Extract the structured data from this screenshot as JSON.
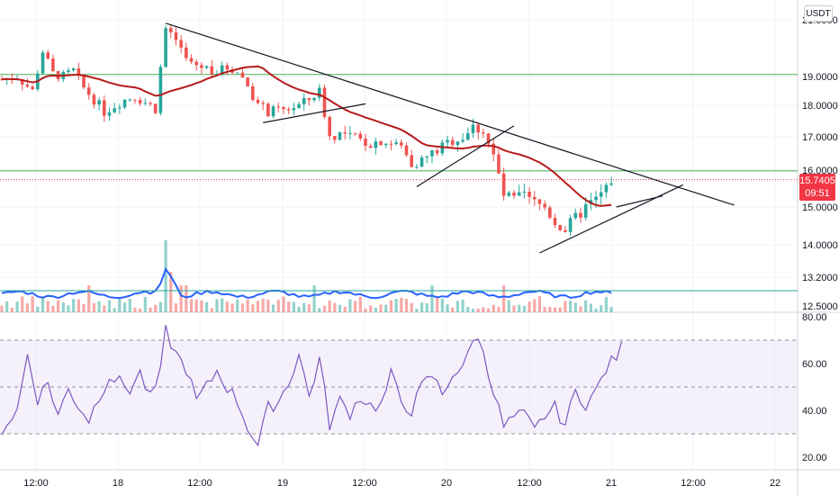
{
  "currency": "USDT",
  "last_price": "15.7405",
  "countdown": "09:51",
  "colors": {
    "up": "#26a69a",
    "down": "#ef5350",
    "ma": "#b71c1c",
    "volume_ma": "#2962ff",
    "rsi": "#7e57c2",
    "rsi_band": "#ede7f6",
    "hline": "#4caf50",
    "trend": "#131722",
    "last_price": "#f23645"
  },
  "chart_data": [
    {
      "type": "candlestick",
      "price_axis_ticks": [
        "21.0000",
        "19.0000",
        "18.0000",
        "17.0000",
        "16.0000",
        "15.0000",
        "14.0000",
        "13.2000",
        "12.5000"
      ],
      "time_axis_ticks": [
        "12:00",
        "18",
        "12:00",
        "19",
        "12:00",
        "20",
        "12:00",
        "21",
        "12:00",
        "22"
      ],
      "ylim": [
        12.5,
        21.2
      ],
      "bars": 120,
      "close_path": [
        [
          0,
          18.9
        ],
        [
          3,
          19.0
        ],
        [
          6,
          18.5
        ],
        [
          8,
          19.9
        ],
        [
          10,
          19.1
        ],
        [
          12,
          19.0
        ],
        [
          14,
          19.2
        ],
        [
          16,
          18.6
        ],
        [
          18,
          18.2
        ],
        [
          20,
          17.8
        ],
        [
          22,
          18.0
        ],
        [
          24,
          18.2
        ],
        [
          26,
          18.3
        ],
        [
          28,
          18.1
        ],
        [
          30,
          17.9
        ],
        [
          32,
          20.7
        ],
        [
          34,
          20.3
        ],
        [
          36,
          19.6
        ],
        [
          38,
          19.4
        ],
        [
          40,
          19.3
        ],
        [
          42,
          19.2
        ],
        [
          44,
          19.3
        ],
        [
          46,
          19.2
        ],
        [
          48,
          18.7
        ],
        [
          50,
          18.0
        ],
        [
          52,
          17.8
        ],
        [
          54,
          17.8
        ],
        [
          56,
          17.9
        ],
        [
          58,
          18.0
        ],
        [
          60,
          18.2
        ],
        [
          62,
          18.5
        ],
        [
          64,
          17.0
        ],
        [
          66,
          17.1
        ],
        [
          68,
          17.0
        ],
        [
          70,
          16.9
        ],
        [
          72,
          16.8
        ],
        [
          74,
          16.9
        ],
        [
          76,
          16.8
        ],
        [
          78,
          16.7
        ],
        [
          80,
          16.2
        ],
        [
          82,
          16.3
        ],
        [
          84,
          16.5
        ],
        [
          86,
          16.7
        ],
        [
          88,
          16.9
        ],
        [
          90,
          17.0
        ],
        [
          92,
          17.3
        ],
        [
          94,
          17.2
        ],
        [
          96,
          16.4
        ],
        [
          98,
          15.3
        ],
        [
          100,
          15.2
        ],
        [
          102,
          15.3
        ],
        [
          104,
          15.1
        ],
        [
          106,
          15.0
        ],
        [
          108,
          14.6
        ],
        [
          110,
          14.4
        ],
        [
          112,
          14.7
        ],
        [
          114,
          15.0
        ],
        [
          116,
          15.2
        ],
        [
          118,
          15.5
        ],
        [
          119,
          15.74
        ]
      ],
      "ma_period": 20,
      "horizontal_lines": [
        19.07,
        15.98
      ],
      "trend_lines": [
        {
          "from": [
            32,
            20.88
          ],
          "to": [
            143,
            15.05
          ]
        },
        {
          "from": [
            51,
            17.45
          ],
          "to": [
            71,
            18.05
          ]
        },
        {
          "from": [
            81,
            15.55
          ],
          "to": [
            100,
            17.35
          ]
        },
        {
          "from": [
            105,
            13.8
          ],
          "to": [
            133,
            15.6
          ]
        },
        {
          "from": [
            120,
            15.0
          ],
          "to": [
            129,
            15.3
          ]
        }
      ],
      "volume_ma_level": 0.6
    },
    {
      "type": "line",
      "name": "",
      "ylim": [
        18,
        82
      ],
      "yticks": [
        "80.00",
        "60.00",
        "40.00",
        "20.00"
      ],
      "band": [
        30,
        70
      ],
      "midline": 50,
      "path": [
        [
          0,
          32
        ],
        [
          3,
          40
        ],
        [
          5,
          64
        ],
        [
          7,
          45
        ],
        [
          9,
          52
        ],
        [
          11,
          38
        ],
        [
          13,
          49
        ],
        [
          15,
          42
        ],
        [
          17,
          36
        ],
        [
          19,
          46
        ],
        [
          21,
          55
        ],
        [
          23,
          52
        ],
        [
          25,
          49
        ],
        [
          27,
          56
        ],
        [
          29,
          45
        ],
        [
          31,
          56
        ],
        [
          32,
          74
        ],
        [
          34,
          64
        ],
        [
          36,
          58
        ],
        [
          38,
          44
        ],
        [
          40,
          50
        ],
        [
          42,
          57
        ],
        [
          44,
          50
        ],
        [
          46,
          44
        ],
        [
          48,
          33
        ],
        [
          50,
          25
        ],
        [
          52,
          41
        ],
        [
          54,
          44
        ],
        [
          56,
          52
        ],
        [
          58,
          64
        ],
        [
          60,
          46
        ],
        [
          62,
          62
        ],
        [
          64,
          34
        ],
        [
          66,
          44
        ],
        [
          68,
          39
        ],
        [
          70,
          46
        ],
        [
          72,
          42
        ],
        [
          74,
          42
        ],
        [
          76,
          55
        ],
        [
          78,
          44
        ],
        [
          80,
          40
        ],
        [
          82,
          50
        ],
        [
          84,
          55
        ],
        [
          86,
          47
        ],
        [
          88,
          56
        ],
        [
          90,
          57
        ],
        [
          92,
          72
        ],
        [
          94,
          66
        ],
        [
          96,
          48
        ],
        [
          98,
          33
        ],
        [
          100,
          37
        ],
        [
          102,
          38
        ],
        [
          104,
          31
        ],
        [
          106,
          38
        ],
        [
          108,
          41
        ],
        [
          110,
          34
        ],
        [
          112,
          48
        ],
        [
          114,
          43
        ],
        [
          116,
          48
        ],
        [
          118,
          58
        ],
        [
          120,
          63
        ],
        [
          121,
          67
        ]
      ]
    }
  ]
}
